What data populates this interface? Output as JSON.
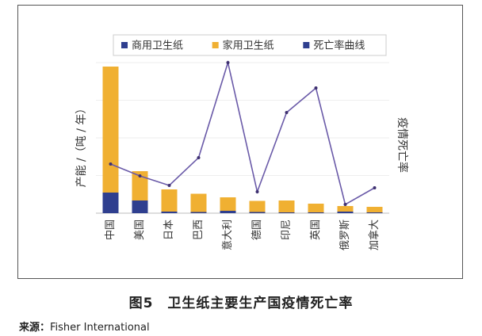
{
  "chart_data": {
    "type": "bar",
    "categories": [
      "中国",
      "美国",
      "日本",
      "巴西",
      "意大利",
      "德国",
      "印尼",
      "英国",
      "俄罗斯",
      "加拿大"
    ],
    "series": [
      {
        "name": "商用卫生纸",
        "kind": "stacked-bar",
        "color": "#2f3f8f",
        "values": [
          26,
          16,
          2,
          1.5,
          3,
          1.5,
          1,
          1,
          2,
          1
        ]
      },
      {
        "name": "家用卫生纸",
        "kind": "stacked-bar",
        "color": "#f0b032",
        "values": [
          159,
          37,
          28,
          23,
          17,
          14,
          15,
          11,
          7,
          7
        ]
      },
      {
        "name": "死亡率曲线",
        "kind": "line",
        "color": "#6a5aa8",
        "values": [
          62,
          47,
          35,
          70,
          190,
          27,
          127,
          158,
          11,
          32
        ]
      }
    ],
    "ylabel": "产能 /（吨 / 年）",
    "y2label": "疫情死亡率",
    "ylim": [
      0,
      190
    ],
    "y2lim": [
      0,
      190
    ],
    "legend_position": "top"
  },
  "caption": {
    "figure": "图5",
    "title": "卫生纸主要生产国疫情死亡率"
  },
  "source": {
    "label": "来源：",
    "text": "Fisher International"
  }
}
